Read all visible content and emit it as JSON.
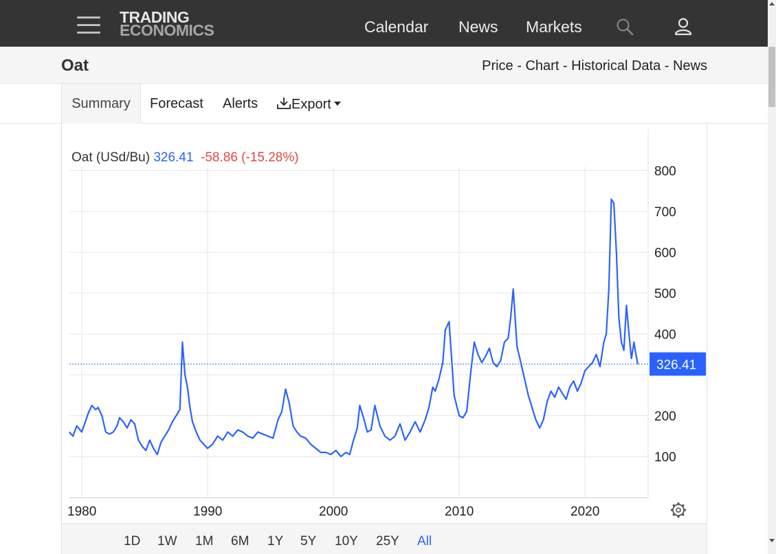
{
  "header": {
    "logo_line1": "TRADING",
    "logo_line2": "ECONOMICS",
    "nav": [
      "Calendar",
      "News",
      "Markets"
    ],
    "icons": [
      "menu-icon",
      "search-icon",
      "user-icon"
    ]
  },
  "subheader": {
    "title": "Oat",
    "links": [
      "Price",
      "Chart",
      "Historical Data",
      "News"
    ],
    "separator": " - "
  },
  "tabs": {
    "summary": "Summary",
    "forecast": "Forecast",
    "alerts": "Alerts",
    "export": "Export"
  },
  "legend": {
    "name": "Oat (USd/Bu)",
    "value": "326.41",
    "change": "-58.86 (-15.28%)"
  },
  "ranges": [
    "1D",
    "1W",
    "1M",
    "6M",
    "1Y",
    "5Y",
    "10Y",
    "25Y",
    "All"
  ],
  "active_range": "All",
  "colors": {
    "line": "#2962ff",
    "price_tag": "#2962ff",
    "negative": "#e04848",
    "header_bg": "#343434"
  },
  "chart_data": {
    "type": "line",
    "title": "Oat (USd/Bu)",
    "xlabel": "",
    "ylabel": "",
    "x_ticks": [
      "1980",
      "1990",
      "2000",
      "2010",
      "2020"
    ],
    "y_ticks": [
      100,
      200,
      300,
      400,
      500,
      600,
      700,
      800
    ],
    "y_tick_labels": [
      "100",
      "200",
      "",
      "400",
      "500",
      "600",
      "700",
      "800"
    ],
    "xlim": [
      1979,
      2024.2
    ],
    "ylim": [
      0,
      900
    ],
    "grid": true,
    "last_value": 326.41,
    "last_value_label": "326.41",
    "series": [
      {
        "name": "Oat",
        "x": [
          1979.0,
          1979.3,
          1979.6,
          1980.0,
          1980.5,
          1980.8,
          1981.1,
          1981.3,
          1981.6,
          1981.9,
          1982.2,
          1982.5,
          1982.8,
          1983.0,
          1983.3,
          1983.6,
          1983.9,
          1984.2,
          1984.5,
          1984.8,
          1985.1,
          1985.4,
          1985.7,
          1986.0,
          1986.3,
          1986.6,
          1986.9,
          1987.2,
          1987.5,
          1987.8,
          1988.0,
          1988.2,
          1988.4,
          1988.6,
          1988.8,
          1989.1,
          1989.4,
          1989.7,
          1990.0,
          1990.4,
          1990.8,
          1991.2,
          1991.6,
          1992.0,
          1992.4,
          1992.8,
          1993.2,
          1993.6,
          1994.0,
          1994.4,
          1994.8,
          1995.2,
          1995.6,
          1995.9,
          1996.2,
          1996.5,
          1996.8,
          1997.1,
          1997.4,
          1997.8,
          1998.2,
          1998.6,
          1999.0,
          1999.4,
          1999.8,
          2000.2,
          2000.6,
          2001.0,
          2001.3,
          2001.6,
          2001.9,
          2002.1,
          2002.4,
          2002.7,
          2003.0,
          2003.3,
          2003.7,
          2004.1,
          2004.5,
          2004.9,
          2005.3,
          2005.7,
          2006.1,
          2006.5,
          2006.9,
          2007.3,
          2007.6,
          2007.9,
          2008.1,
          2008.4,
          2008.7,
          2008.9,
          2009.2,
          2009.6,
          2010.0,
          2010.3,
          2010.6,
          2010.9,
          2011.2,
          2011.5,
          2011.8,
          2012.1,
          2012.4,
          2012.7,
          2013.0,
          2013.3,
          2013.6,
          2013.9,
          2014.1,
          2014.3,
          2014.6,
          2014.9,
          2015.2,
          2015.5,
          2015.8,
          2016.1,
          2016.4,
          2016.7,
          2017.0,
          2017.3,
          2017.6,
          2017.9,
          2018.2,
          2018.5,
          2018.8,
          2019.1,
          2019.4,
          2019.7,
          2020.0,
          2020.3,
          2020.6,
          2020.9,
          2021.2,
          2021.5,
          2021.7,
          2021.9,
          2022.1,
          2022.3,
          2022.5,
          2022.7,
          2022.9,
          2023.1,
          2023.3,
          2023.5,
          2023.7,
          2023.9,
          2024.0,
          2024.2
        ],
        "y": [
          160,
          150,
          175,
          160,
          205,
          225,
          215,
          220,
          200,
          160,
          155,
          160,
          175,
          195,
          185,
          170,
          190,
          180,
          140,
          125,
          115,
          140,
          120,
          105,
          135,
          150,
          165,
          185,
          200,
          215,
          380,
          300,
          270,
          220,
          185,
          160,
          140,
          130,
          120,
          130,
          150,
          140,
          160,
          150,
          165,
          160,
          150,
          145,
          160,
          155,
          150,
          145,
          190,
          210,
          265,
          230,
          175,
          160,
          150,
          145,
          130,
          120,
          110,
          110,
          105,
          115,
          100,
          110,
          105,
          140,
          170,
          225,
          195,
          160,
          165,
          225,
          175,
          150,
          140,
          150,
          180,
          140,
          160,
          185,
          160,
          190,
          220,
          270,
          260,
          290,
          330,
          410,
          430,
          250,
          200,
          195,
          210,
          300,
          380,
          350,
          330,
          345,
          365,
          330,
          320,
          335,
          380,
          390,
          440,
          510,
          370,
          330,
          290,
          250,
          220,
          190,
          170,
          190,
          235,
          260,
          245,
          270,
          255,
          240,
          270,
          285,
          260,
          280,
          310,
          320,
          330,
          350,
          320,
          380,
          400,
          510,
          730,
          720,
          600,
          440,
          380,
          360,
          470,
          400,
          340,
          380,
          360,
          326
        ]
      }
    ]
  }
}
